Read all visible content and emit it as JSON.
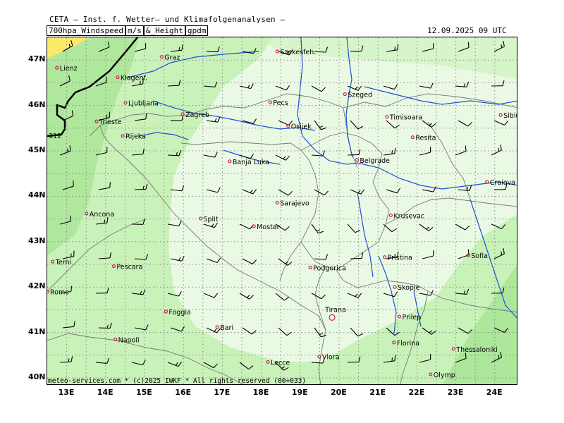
{
  "header": {
    "org": "CETA – Inst. f. Wetter– und Klimafolgenanalysen –",
    "param_parts": [
      "700hpa_Windspeed",
      "m/s",
      "&_Height",
      "gpdm"
    ],
    "datetime": "12.09.2025 09 UTC"
  },
  "copyright": "meteo-services.com * (c)2025 IWKF * All rights reserved (00+033)",
  "contour_label": "312",
  "axes": {
    "lat_labels": [
      "47N",
      "46N",
      "45N",
      "44N",
      "43N",
      "42N",
      "41N",
      "40N"
    ],
    "lon_labels": [
      "13E",
      "14E",
      "15E",
      "16E",
      "17E",
      "18E",
      "19E",
      "20E",
      "21E",
      "22E",
      "23E",
      "24E"
    ]
  },
  "cities": [
    {
      "name": "Lienz",
      "lon": 12.75,
      "lat": 46.83
    },
    {
      "name": "Graz",
      "lon": 15.44,
      "lat": 47.07
    },
    {
      "name": "Szekesfeh.",
      "lon": 18.41,
      "lat": 47.19
    },
    {
      "name": "Klagenf.",
      "lon": 14.31,
      "lat": 46.62
    },
    {
      "name": "Ljubljana",
      "lon": 14.51,
      "lat": 46.06
    },
    {
      "name": "Trieste",
      "lon": 13.77,
      "lat": 45.65
    },
    {
      "name": "Zagreb",
      "lon": 15.98,
      "lat": 45.81
    },
    {
      "name": "Pecs",
      "lon": 18.23,
      "lat": 46.07
    },
    {
      "name": "Szeged",
      "lon": 20.15,
      "lat": 46.25
    },
    {
      "name": "Rijeka",
      "lon": 14.44,
      "lat": 45.33
    },
    {
      "name": "Osijek",
      "lon": 18.69,
      "lat": 45.55
    },
    {
      "name": "Timisoara",
      "lon": 21.23,
      "lat": 45.75
    },
    {
      "name": "Sibiu",
      "lon": 24.15,
      "lat": 45.79
    },
    {
      "name": "Resita",
      "lon": 21.89,
      "lat": 45.3
    },
    {
      "name": "Banja Luka",
      "lon": 17.19,
      "lat": 44.77
    },
    {
      "name": "Belgrade",
      "lon": 20.46,
      "lat": 44.8
    },
    {
      "name": "Craiova",
      "lon": 23.8,
      "lat": 44.32
    },
    {
      "name": "Sarajevo",
      "lon": 18.41,
      "lat": 43.86
    },
    {
      "name": "Ancona",
      "lon": 13.51,
      "lat": 43.62
    },
    {
      "name": "Split",
      "lon": 16.44,
      "lat": 43.51
    },
    {
      "name": "Mostar",
      "lon": 17.81,
      "lat": 43.34
    },
    {
      "name": "Terni",
      "lon": 12.64,
      "lat": 42.56
    },
    {
      "name": "Pescara",
      "lon": 14.21,
      "lat": 42.46
    },
    {
      "name": "Podgorica",
      "lon": 19.26,
      "lat": 42.43
    },
    {
      "name": "Krusevac",
      "lon": 21.33,
      "lat": 43.58
    },
    {
      "name": "Pristina",
      "lon": 21.17,
      "lat": 42.66
    },
    {
      "name": "Sofia",
      "lon": 23.32,
      "lat": 42.7
    },
    {
      "name": "Rome",
      "lon": 12.5,
      "lat": 41.9
    },
    {
      "name": "Skopje",
      "lon": 21.43,
      "lat": 42.0
    },
    {
      "name": "Foggia",
      "lon": 15.55,
      "lat": 41.46
    },
    {
      "name": "Tirana",
      "lon": 19.82,
      "lat": 41.33
    },
    {
      "name": "Prilep",
      "lon": 21.55,
      "lat": 41.35
    },
    {
      "name": "Bari",
      "lon": 16.87,
      "lat": 41.12
    },
    {
      "name": "Napoli",
      "lon": 14.25,
      "lat": 40.85
    },
    {
      "name": "Florina",
      "lon": 21.41,
      "lat": 40.78
    },
    {
      "name": "Thessaloniki",
      "lon": 22.94,
      "lat": 40.64
    },
    {
      "name": "Lecce",
      "lon": 18.17,
      "lat": 40.35
    },
    {
      "name": "Vlora",
      "lon": 19.49,
      "lat": 40.47
    },
    {
      "name": "Olymp",
      "lon": 22.35,
      "lat": 40.08
    }
  ],
  "colors": {
    "light_zone": "#eaf9e3",
    "mid_zone": "#c9f2b9",
    "dark_zone": "#a6e494",
    "yellow_zone": "#fbe96a",
    "rivers": "#1f4fd6",
    "borders": "#777777",
    "city_marker": "#cc1f55"
  }
}
